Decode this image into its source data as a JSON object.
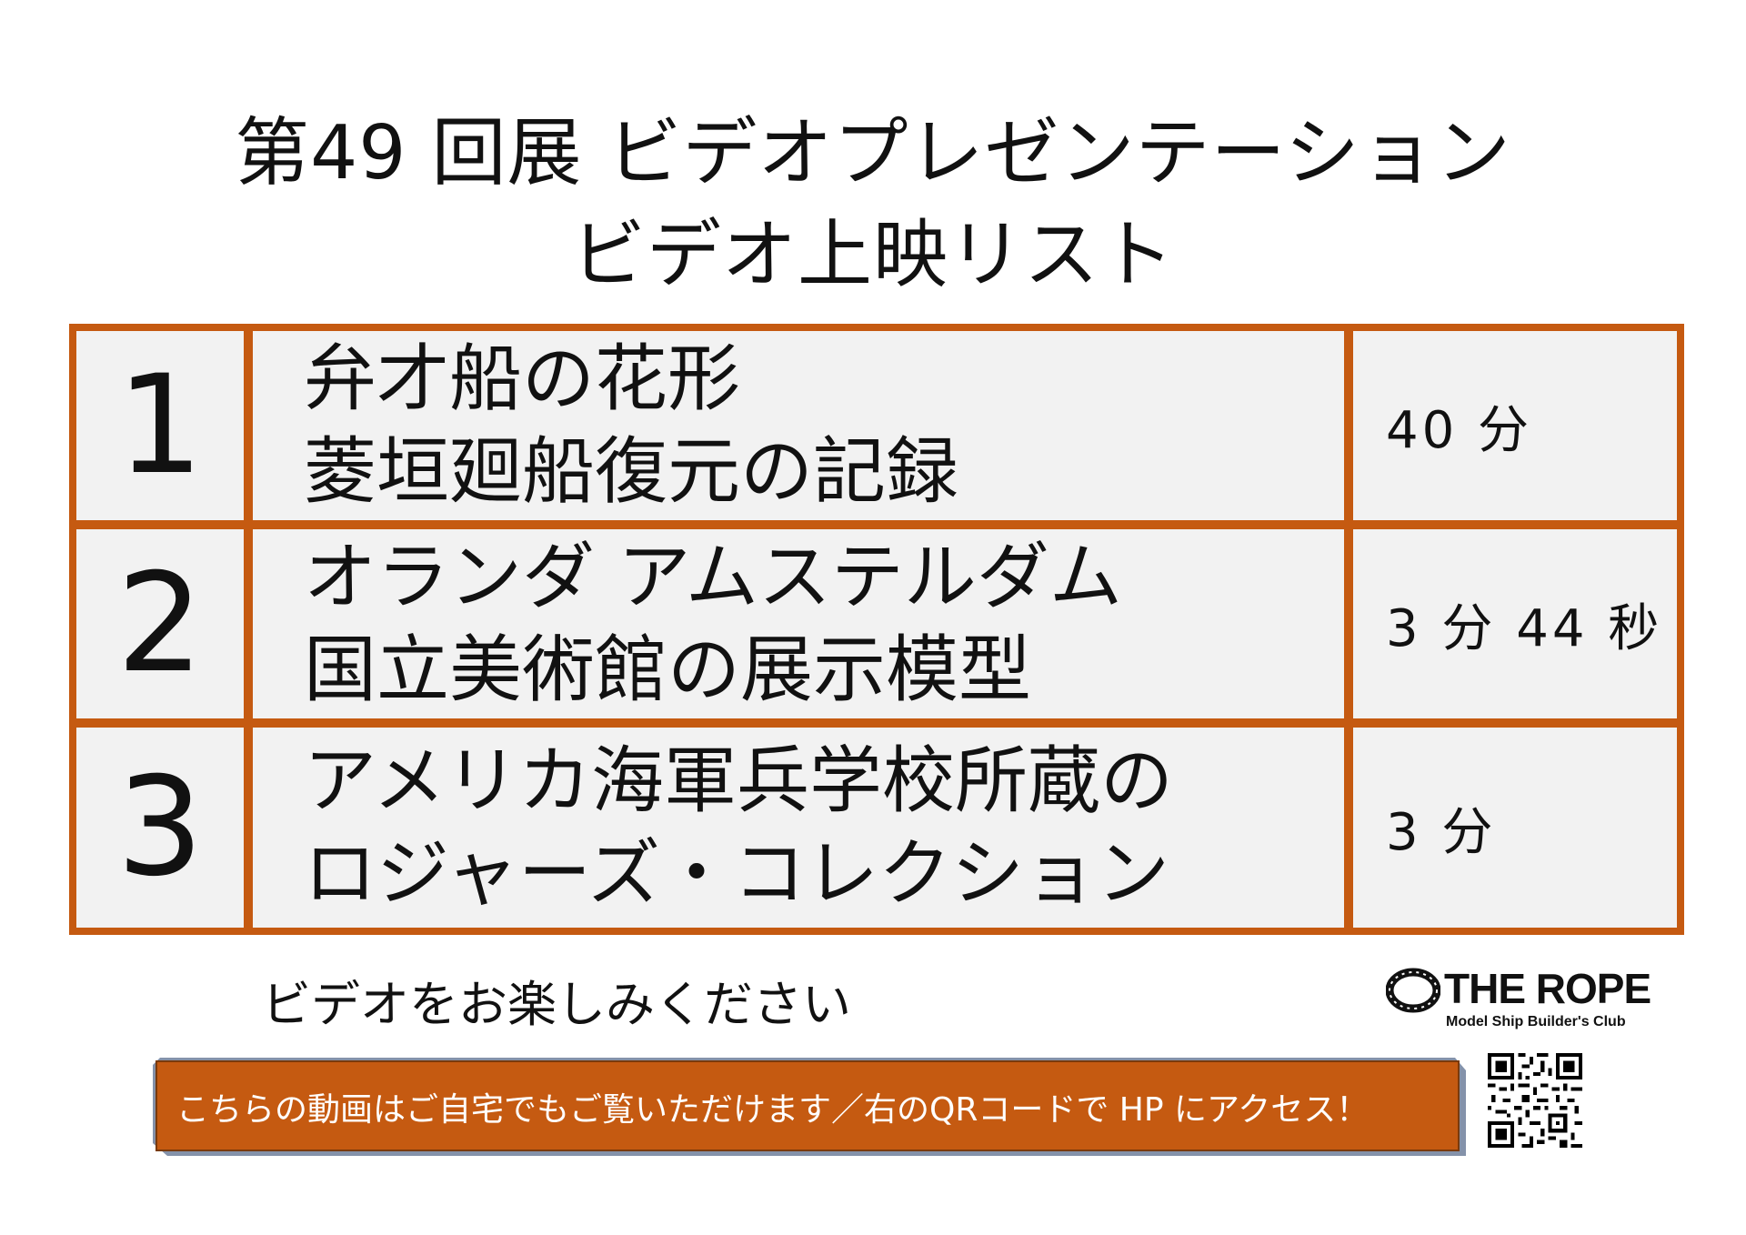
{
  "header": {
    "title_line1": "第49 回展  ビデオプレゼンテーション",
    "title_line2": "ビデオ上映リスト"
  },
  "videos": [
    {
      "number": "1",
      "title_line1": "弁才船の花形",
      "title_line2": "菱垣廻船復元の記録",
      "duration": "40 分"
    },
    {
      "number": "2",
      "title_line1": "オランダ  アムステルダム",
      "title_line2": "国立美術館の展示模型",
      "duration": "3 分 44 秒"
    },
    {
      "number": "3",
      "title_line1": "アメリカ海軍兵学校所蔵の",
      "title_line2": "ロジャーズ・コレクション",
      "duration": "3 分"
    }
  ],
  "footer": {
    "enjoy_text": "ビデオをお楽しみください",
    "banner_text": "こちらの動画はご自宅でもご覧いただけます／右のQRコードで HP にアクセス！"
  },
  "logo": {
    "name": "THE ROPE",
    "subtitle": "Model Ship Builder's Club"
  },
  "colors": {
    "accent": "#c55a11",
    "cell_background": "#f2f2f2",
    "text": "#111111"
  },
  "icons": {
    "logo": "rope-ring-icon",
    "qr": "qr-code-icon"
  }
}
